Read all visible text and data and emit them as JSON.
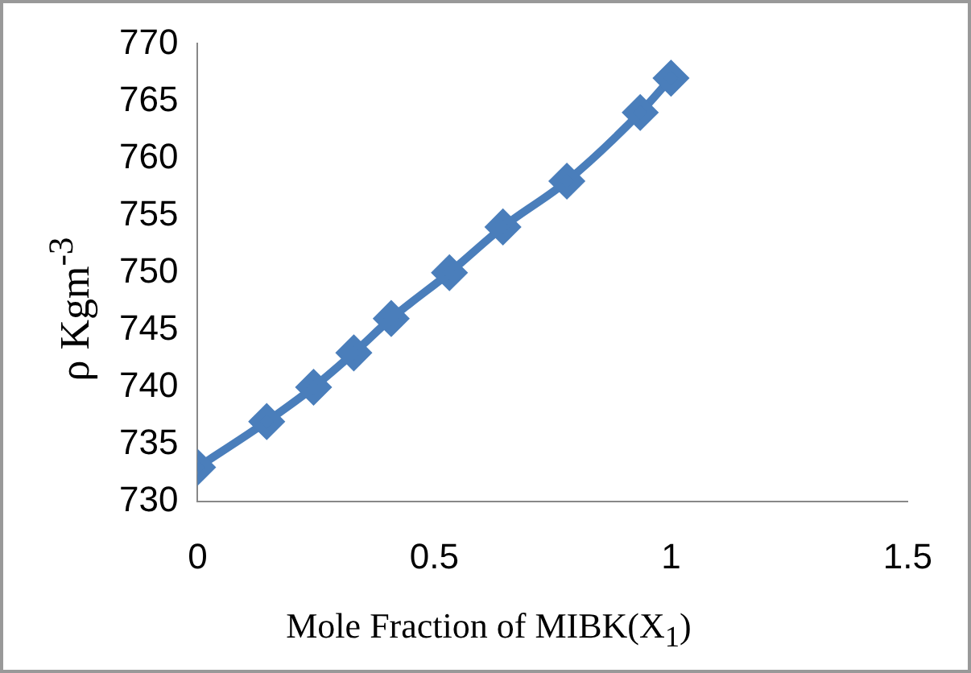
{
  "chart_data": {
    "type": "line",
    "xlabel": "Mole Fraction of MIBK(X$_{1}$)",
    "ylabel": "ρ  Kgm$^{-3}$",
    "x": [
      0,
      0.146,
      0.245,
      0.33,
      0.409,
      0.532,
      0.645,
      0.78,
      0.935,
      1
    ],
    "series": [
      {
        "color": "#4a7ebb",
        "values": [
          733,
          737,
          740,
          743,
          746,
          750,
          754,
          758,
          764,
          767
        ]
      }
    ],
    "xlim": [
      0,
      1.5
    ],
    "xticks": [
      0,
      0.5,
      1,
      1.5
    ],
    "ylim": [
      730,
      770
    ],
    "yticks": [
      730,
      735,
      740,
      745,
      750,
      755,
      760,
      765,
      770
    ],
    "grid": false,
    "legend": false,
    "marker": "diamond",
    "line_style": "solid"
  }
}
